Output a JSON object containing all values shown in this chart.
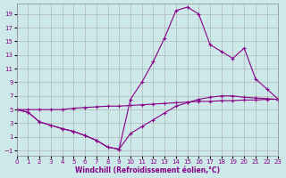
{
  "xlabel": "Windchill (Refroidissement éolien,°C)",
  "bg_color": "#cce8e8",
  "grid_color": "#aaaaaa",
  "line_color": "#880088",
  "xlim": [
    0,
    23
  ],
  "ylim": [
    -1.8,
    20.5
  ],
  "xticks": [
    0,
    1,
    2,
    3,
    4,
    5,
    6,
    7,
    8,
    9,
    10,
    11,
    12,
    13,
    14,
    15,
    16,
    17,
    18,
    19,
    20,
    21,
    22,
    23
  ],
  "yticks": [
    -1,
    1,
    3,
    5,
    7,
    9,
    11,
    13,
    15,
    17,
    19
  ],
  "curve_flat_x": [
    0,
    1,
    2,
    3,
    4,
    5,
    6,
    7,
    8,
    9,
    10,
    11,
    12,
    13,
    14,
    15,
    16,
    17,
    18,
    19,
    20,
    21,
    22,
    23
  ],
  "curve_flat_y": [
    5.0,
    5.0,
    5.0,
    5.0,
    5.0,
    5.2,
    5.3,
    5.4,
    5.5,
    5.5,
    5.6,
    5.7,
    5.8,
    5.9,
    6.0,
    6.1,
    6.2,
    6.2,
    6.3,
    6.3,
    6.4,
    6.4,
    6.5,
    6.5
  ],
  "curve_dip_x": [
    0,
    1,
    2,
    3,
    4,
    5,
    6,
    7,
    8,
    9,
    10,
    11,
    12,
    13,
    14,
    15,
    16,
    17,
    18,
    19,
    20,
    21,
    22,
    23
  ],
  "curve_dip_y": [
    5.0,
    4.6,
    3.2,
    2.7,
    2.2,
    1.8,
    1.2,
    0.5,
    -0.5,
    -0.8,
    1.5,
    2.5,
    3.5,
    4.5,
    5.5,
    6.0,
    6.5,
    6.8,
    7.0,
    7.0,
    6.8,
    6.7,
    6.6,
    6.5
  ],
  "curve_spike_x": [
    0,
    1,
    2,
    3,
    4,
    5,
    6,
    7,
    8,
    9,
    10,
    11,
    12,
    13,
    14,
    15,
    16,
    17,
    18,
    19,
    20,
    21,
    22,
    23
  ],
  "curve_spike_y": [
    5.0,
    4.6,
    3.2,
    2.7,
    2.2,
    1.8,
    1.2,
    0.5,
    -0.5,
    -0.8,
    6.5,
    9.0,
    12.0,
    15.5,
    19.5,
    20.0,
    19.0,
    14.5,
    13.5,
    12.5,
    14.0,
    9.5,
    8.0,
    6.5
  ]
}
